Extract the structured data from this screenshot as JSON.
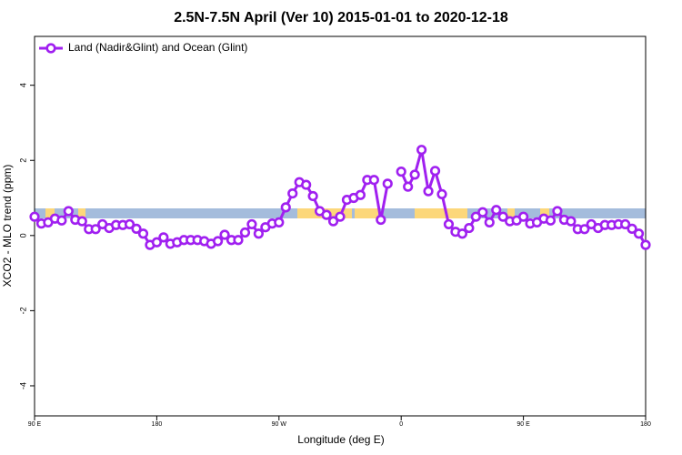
{
  "chart_data": {
    "type": "line",
    "title": "2.5N-7.5N April (Ver 10)   2015-01-01 to 2020-12-18",
    "xlabel": "Longitude (deg E)",
    "ylabel": "XCO2 - MLO trend (ppm)",
    "x": [
      90,
      95,
      100,
      105,
      110,
      115,
      120,
      125,
      130,
      135,
      140,
      145,
      150,
      155,
      160,
      165,
      170,
      175,
      180,
      185,
      190,
      195,
      200,
      205,
      210,
      215,
      220,
      225,
      230,
      235,
      240,
      245,
      250,
      255,
      260,
      265,
      270,
      275,
      280,
      285,
      290,
      295,
      300,
      305,
      310,
      315,
      320,
      325,
      330,
      335,
      340,
      345,
      350,
      355,
      360,
      365,
      370,
      375,
      380,
      385,
      390,
      395,
      400,
      405,
      410,
      415,
      420,
      425,
      430,
      435,
      440,
      445,
      450,
      455,
      460,
      465,
      470,
      475,
      480,
      485,
      490,
      495,
      500,
      505,
      510,
      515,
      520,
      525,
      530,
      535,
      540
    ],
    "series": [
      {
        "name": "Land (Nadir&Glint) and Ocean (Glint)",
        "color": "#a020f0",
        "values": [
          0.5,
          0.32,
          0.35,
          0.45,
          0.4,
          0.65,
          0.42,
          0.38,
          0.17,
          0.17,
          0.3,
          0.2,
          0.28,
          0.28,
          0.3,
          0.18,
          0.05,
          -0.25,
          -0.18,
          -0.05,
          -0.22,
          -0.18,
          -0.12,
          -0.12,
          -0.12,
          -0.15,
          -0.22,
          -0.15,
          0.02,
          -0.12,
          -0.12,
          0.08,
          0.3,
          0.05,
          0.22,
          0.32,
          0.35,
          0.75,
          1.12,
          1.42,
          1.35,
          1.05,
          0.65,
          0.55,
          0.38,
          0.5,
          0.95,
          1.0,
          1.08,
          1.48,
          1.48,
          0.42,
          1.38,
          null,
          1.7,
          1.3,
          1.62,
          2.28,
          1.18,
          1.72,
          1.1,
          0.3,
          0.1,
          0.05,
          0.2,
          0.5,
          0.62,
          0.35,
          0.68,
          0.5,
          0.38,
          0.4,
          0.5,
          0.32,
          0.35,
          0.45,
          0.4,
          0.65,
          0.42,
          0.38,
          0.17,
          0.17,
          0.3,
          0.2,
          0.28,
          0.28,
          0.3,
          0.3,
          0.18,
          0.05,
          -0.25
        ]
      }
    ],
    "xlim": [
      90,
      540
    ],
    "xticks": [
      {
        "value": 90,
        "label": "90 E"
      },
      180,
      {
        "value": 270,
        "label": "90 W"
      },
      {
        "value": 360,
        "label": "0"
      },
      {
        "value": 450,
        "label": "90 E"
      },
      {
        "value": 540,
        "label": "180"
      }
    ],
    "ylim": [
      -4.8,
      5.3
    ],
    "yticks": [
      -4,
      -2,
      0,
      2,
      4
    ],
    "legend": "top-left"
  }
}
